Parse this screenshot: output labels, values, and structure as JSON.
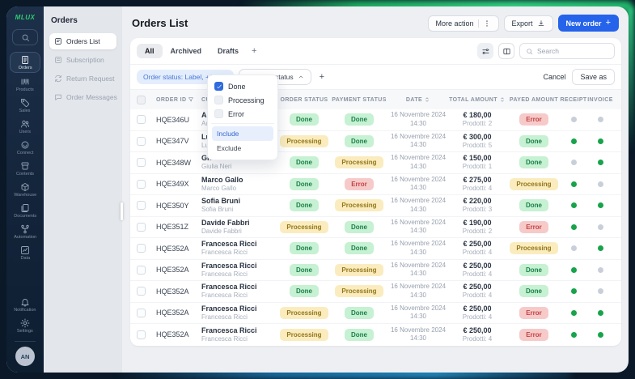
{
  "app": {
    "logo": "MLUX",
    "avatar_initials": "AN"
  },
  "colors": {
    "accent_blue": "#2563eb",
    "brand_green": "#2ecc71",
    "status_done_bg": "#c6f1d2",
    "status_done_text": "#1a7f49",
    "status_processing_bg": "#faecbe",
    "status_processing_text": "#93761a",
    "status_error_bg": "#f7caca",
    "status_error_text": "#c24343",
    "dot_green": "#17a34a",
    "dot_gray": "#c9cfd8"
  },
  "icon_rail": {
    "items": [
      {
        "icon": "orders-icon",
        "label": "Orders",
        "active": true
      },
      {
        "icon": "products-icon",
        "label": "Products",
        "active": false
      },
      {
        "icon": "sales-icon",
        "label": "Sales",
        "active": false
      },
      {
        "icon": "users-icon",
        "label": "Users",
        "active": false
      },
      {
        "icon": "connect-icon",
        "label": "Connect",
        "active": false
      },
      {
        "icon": "contents-icon",
        "label": "Contents",
        "active": false
      },
      {
        "icon": "warehouse-icon",
        "label": "Warehouse",
        "active": false
      },
      {
        "icon": "documents-icon",
        "label": "Documents",
        "active": false
      },
      {
        "icon": "automation-icon",
        "label": "Automation",
        "active": false
      },
      {
        "icon": "data-icon",
        "label": "Data",
        "active": false
      }
    ],
    "bottom_items": [
      {
        "icon": "notification-icon",
        "label": "Notification",
        "active": false
      },
      {
        "icon": "settings-icon",
        "label": "Settings",
        "active": false
      }
    ]
  },
  "sidebar": {
    "title": "Orders",
    "items": [
      {
        "icon": "orders-list-icon",
        "label": "Orders List",
        "active": true
      },
      {
        "icon": "subscription-icon",
        "label": "Subscription",
        "active": false
      },
      {
        "icon": "return-request-icon",
        "label": "Return Request",
        "active": false
      },
      {
        "icon": "order-messages-icon",
        "label": "Order Messages",
        "active": false
      }
    ]
  },
  "header": {
    "title": "Orders List",
    "more_action_label": "More action",
    "export_label": "Export",
    "new_order_label": "New order",
    "new_order_plus": "+"
  },
  "tabs": {
    "items": [
      {
        "label": "All",
        "active": true
      },
      {
        "label": "Archived",
        "active": false
      },
      {
        "label": "Drafts",
        "active": false
      }
    ],
    "add_label": "+",
    "search_placeholder": "Search"
  },
  "filters": {
    "order_status_chip": "Order status: Label, +1...",
    "order_status_close": "×",
    "payment_status_chip": "Payment status",
    "add_label": "+",
    "cancel_label": "Cancel",
    "save_as_label": "Save as"
  },
  "dropdown": {
    "options": [
      {
        "label": "Done",
        "checked": true
      },
      {
        "label": "Processing",
        "checked": false
      },
      {
        "label": "Error",
        "checked": false
      }
    ],
    "actions": [
      {
        "label": "Include",
        "active": true
      },
      {
        "label": "Exclude",
        "active": false
      }
    ]
  },
  "table": {
    "columns": [
      {
        "key": "sel",
        "label": "",
        "icon": ""
      },
      {
        "key": "id",
        "label": "ORDER ID",
        "icon": "funnel"
      },
      {
        "key": "cust",
        "label": "CUSTOMER",
        "icon": ""
      },
      {
        "key": "ostatus",
        "label": "ORDER STATUS",
        "icon": ""
      },
      {
        "key": "pstatus",
        "label": "PAYMENT STATUS",
        "icon": ""
      },
      {
        "key": "date",
        "label": "DATE",
        "icon": "sort"
      },
      {
        "key": "total",
        "label": "TOTAL AMOUNT",
        "icon": "sort"
      },
      {
        "key": "payed",
        "label": "PAYED AMOUNT",
        "icon": ""
      },
      {
        "key": "receipt",
        "label": "RECEIPT",
        "icon": ""
      },
      {
        "key": "invoice",
        "label": "INVOICE",
        "icon": ""
      }
    ],
    "rows": [
      {
        "id": "HQE346U",
        "customer": "Aurora Rossi",
        "customer_sub": "Aurora Rossi",
        "order_status": "Done",
        "payment_status": "Done",
        "date": "16 Novembre 2024",
        "time": "14:30",
        "total": "€ 180,00",
        "products": "Prodotti: 2",
        "payed_status": "Error",
        "receipt": false,
        "invoice": false
      },
      {
        "id": "HQE347V",
        "customer": "Luca Moretti",
        "customer_sub": "Luca Moretti",
        "order_status": "Processing",
        "payment_status": "Done",
        "date": "16 Novembre 2024",
        "time": "14:30",
        "total": "€ 300,00",
        "products": "Prodotti: 5",
        "payed_status": "Done",
        "receipt": true,
        "invoice": true
      },
      {
        "id": "HQE348W",
        "customer": "Giulia Neri",
        "customer_sub": "Giulia Neri",
        "order_status": "Done",
        "payment_status": "Processing",
        "date": "16 Novembre 2024",
        "time": "14:30",
        "total": "€ 150,00",
        "products": "Prodotti: 1",
        "payed_status": "Done",
        "receipt": false,
        "invoice": true
      },
      {
        "id": "HQE349X",
        "customer": "Marco Gallo",
        "customer_sub": "Marco Gallo",
        "order_status": "Done",
        "payment_status": "Error",
        "date": "16 Novembre 2024",
        "time": "14:30",
        "total": "€ 275,00",
        "products": "Prodotti: 4",
        "payed_status": "Processing",
        "receipt": true,
        "invoice": false
      },
      {
        "id": "HQE350Y",
        "customer": "Sofia Bruni",
        "customer_sub": "Sofia Bruni",
        "order_status": "Done",
        "payment_status": "Processing",
        "date": "16 Novembre 2024",
        "time": "14:30",
        "total": "€ 220,00",
        "products": "Prodotti: 3",
        "payed_status": "Done",
        "receipt": true,
        "invoice": true
      },
      {
        "id": "HQE351Z",
        "customer": "Davide Fabbri",
        "customer_sub": "Davide Fabbri",
        "order_status": "Processing",
        "payment_status": "Done",
        "date": "16 Novembre 2024",
        "time": "14:30",
        "total": "€ 190,00",
        "products": "Prodotti: 2",
        "payed_status": "Error",
        "receipt": true,
        "invoice": false
      },
      {
        "id": "HQE352A",
        "customer": "Francesca Ricci",
        "customer_sub": "Francesca Ricci",
        "order_status": "Done",
        "payment_status": "Done",
        "date": "16 Novembre 2024",
        "time": "14:30",
        "total": "€ 250,00",
        "products": "Prodotti: 4",
        "payed_status": "Processing",
        "receipt": false,
        "invoice": true
      },
      {
        "id": "HQE352A",
        "customer": "Francesca Ricci",
        "customer_sub": "Francesca Ricci",
        "order_status": "Done",
        "payment_status": "Processing",
        "date": "16 Novembre 2024",
        "time": "14:30",
        "total": "€ 250,00",
        "products": "Prodotti: 4",
        "payed_status": "Done",
        "receipt": true,
        "invoice": false
      },
      {
        "id": "HQE352A",
        "customer": "Francesca Ricci",
        "customer_sub": "Francesca Ricci",
        "order_status": "Done",
        "payment_status": "Processing",
        "date": "16 Novembre 2024",
        "time": "14:30",
        "total": "€ 250,00",
        "products": "Prodotti: 4",
        "payed_status": "Done",
        "receipt": true,
        "invoice": false
      },
      {
        "id": "HQE352A",
        "customer": "Francesca Ricci",
        "customer_sub": "Francesca Ricci",
        "order_status": "Processing",
        "payment_status": "Done",
        "date": "16 Novembre 2024",
        "time": "14:30",
        "total": "€ 250,00",
        "products": "Prodotti: 4",
        "payed_status": "Error",
        "receipt": true,
        "invoice": true
      },
      {
        "id": "HQE352A",
        "customer": "Francesca Ricci",
        "customer_sub": "Francesca Ricci",
        "order_status": "Processing",
        "payment_status": "Done",
        "date": "16 Novembre 2024",
        "time": "14:30",
        "total": "€ 250,00",
        "products": "Prodotti: 4",
        "payed_status": "Error",
        "receipt": true,
        "invoice": true
      }
    ]
  }
}
